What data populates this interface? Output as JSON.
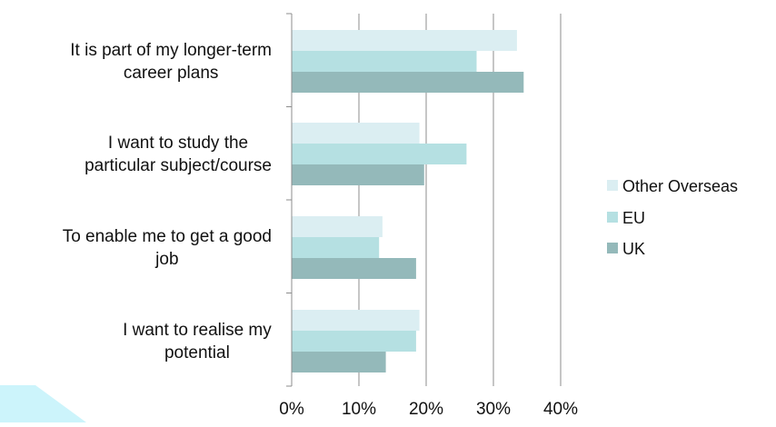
{
  "chart_data": {
    "type": "bar",
    "orientation": "horizontal",
    "categories": [
      "It is part of my longer-term career plans",
      "I want to study the particular subject/course",
      "To enable me to get a good job",
      "I want to realise my potential"
    ],
    "category_lines": [
      [
        "It is part of my longer-term",
        "career plans"
      ],
      [
        "I want to study the",
        "particular subject/course"
      ],
      [
        "To enable me to get a good",
        "job"
      ],
      [
        "I want to realise my",
        "potential"
      ]
    ],
    "series": [
      {
        "name": "Other Overseas",
        "color": "#dbeef2",
        "values": [
          33.5,
          19.0,
          13.5,
          19.0
        ]
      },
      {
        "name": "EU",
        "color": "#b5e0e2",
        "values": [
          27.5,
          26.0,
          13.0,
          18.5
        ]
      },
      {
        "name": "UK",
        "color": "#94b9ba",
        "values": [
          34.5,
          19.7,
          18.5,
          14.0
        ]
      }
    ],
    "xlim": [
      0,
      40
    ],
    "xticks": [
      0,
      10,
      20,
      30,
      40
    ],
    "tick_labels": [
      "0%",
      "10%",
      "20%",
      "30%",
      "40%"
    ],
    "grid": true,
    "legend_position": "right",
    "title": "",
    "xlabel": "",
    "ylabel": ""
  },
  "decoration_color": "#ccf4fb"
}
